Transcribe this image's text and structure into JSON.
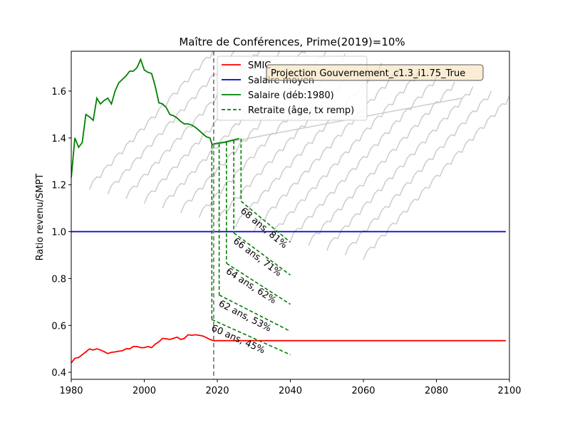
{
  "chart_data": {
    "type": "line",
    "title": "Maître de Conférences, Prime(2019)=10%",
    "xlabel": "",
    "ylabel": "Ratio revenu/SMPT",
    "xlim": [
      1980,
      2100
    ],
    "ylim": [
      0.37,
      1.77
    ],
    "xticks": [
      1980,
      2000,
      2020,
      2040,
      2060,
      2080,
      2100
    ],
    "yticks": [
      0.4,
      0.6,
      0.8,
      1.0,
      1.2,
      1.4,
      1.6
    ],
    "xtick_labels": [
      "1980",
      "2000",
      "2020",
      "2040",
      "2060",
      "2080",
      "2100"
    ],
    "ytick_labels": [
      "0.4",
      "0.6",
      "0.8",
      "1.0",
      "1.2",
      "1.4",
      "1.6"
    ],
    "vline_year": 2019,
    "annotation_box": "Projection Gouvernement_c1.3_i1.75_True",
    "legend_position": "top-center",
    "legend": [
      {
        "label": "SMIC",
        "color": "#ff0000",
        "style": "solid"
      },
      {
        "label": "Salaire moyen",
        "color": "#0000cc",
        "style": "solid"
      },
      {
        "label": "Salaire (déb:1980)",
        "color": "#008000",
        "style": "solid"
      },
      {
        "label": "Retraite (âge, tx remp)",
        "color": "#008000",
        "style": "dashed"
      }
    ],
    "series": [
      {
        "name": "SMIC",
        "color": "#ff0000",
        "points": [
          [
            1980,
            0.44
          ],
          [
            1981,
            0.46
          ],
          [
            1982,
            0.463
          ],
          [
            1983,
            0.475
          ],
          [
            1984,
            0.487
          ],
          [
            1985,
            0.5
          ],
          [
            1986,
            0.495
          ],
          [
            1987,
            0.5
          ],
          [
            1988,
            0.495
          ],
          [
            1989,
            0.488
          ],
          [
            1990,
            0.48
          ],
          [
            1991,
            0.485
          ],
          [
            1992,
            0.487
          ],
          [
            1993,
            0.49
          ],
          [
            1994,
            0.492
          ],
          [
            1995,
            0.5
          ],
          [
            1996,
            0.5
          ],
          [
            1997,
            0.51
          ],
          [
            1998,
            0.51
          ],
          [
            1999,
            0.505
          ],
          [
            2000,
            0.505
          ],
          [
            2001,
            0.51
          ],
          [
            2002,
            0.505
          ],
          [
            2003,
            0.52
          ],
          [
            2004,
            0.53
          ],
          [
            2005,
            0.545
          ],
          [
            2006,
            0.543
          ],
          [
            2007,
            0.54
          ],
          [
            2008,
            0.545
          ],
          [
            2009,
            0.55
          ],
          [
            2010,
            0.54
          ],
          [
            2011,
            0.545
          ],
          [
            2012,
            0.56
          ],
          [
            2013,
            0.558
          ],
          [
            2014,
            0.56
          ],
          [
            2015,
            0.558
          ],
          [
            2016,
            0.555
          ],
          [
            2017,
            0.548
          ],
          [
            2018,
            0.54
          ],
          [
            2019,
            0.535
          ],
          [
            2030,
            0.535
          ],
          [
            2060,
            0.535
          ],
          [
            2099,
            0.535
          ]
        ]
      },
      {
        "name": "Salaire moyen",
        "color": "#0000cc",
        "points": [
          [
            1980,
            1.0
          ],
          [
            2099,
            1.0
          ]
        ]
      },
      {
        "name": "Salaire (déb:1980)",
        "color": "#008000",
        "points": [
          [
            1980,
            1.23
          ],
          [
            1981,
            1.4
          ],
          [
            1982,
            1.36
          ],
          [
            1983,
            1.38
          ],
          [
            1984,
            1.5
          ],
          [
            1985,
            1.49
          ],
          [
            1986,
            1.475
          ],
          [
            1987,
            1.57
          ],
          [
            1988,
            1.545
          ],
          [
            1989,
            1.56
          ],
          [
            1990,
            1.57
          ],
          [
            1991,
            1.545
          ],
          [
            1992,
            1.6
          ],
          [
            1993,
            1.635
          ],
          [
            1994,
            1.65
          ],
          [
            1995,
            1.665
          ],
          [
            1996,
            1.685
          ],
          [
            1997,
            1.685
          ],
          [
            1998,
            1.7
          ],
          [
            1999,
            1.735
          ],
          [
            2000,
            1.69
          ],
          [
            2001,
            1.68
          ],
          [
            2002,
            1.675
          ],
          [
            2003,
            1.62
          ],
          [
            2004,
            1.55
          ],
          [
            2005,
            1.545
          ],
          [
            2006,
            1.53
          ],
          [
            2007,
            1.5
          ],
          [
            2008,
            1.495
          ],
          [
            2009,
            1.485
          ],
          [
            2010,
            1.47
          ],
          [
            2011,
            1.46
          ],
          [
            2012,
            1.46
          ],
          [
            2013,
            1.455
          ],
          [
            2014,
            1.445
          ],
          [
            2015,
            1.432
          ],
          [
            2016,
            1.418
          ],
          [
            2017,
            1.405
          ],
          [
            2018,
            1.4
          ],
          [
            2018.6,
            1.37
          ],
          [
            2019,
            1.375
          ],
          [
            2022,
            1.382
          ],
          [
            2024,
            1.39
          ],
          [
            2026,
            1.397
          ]
        ]
      }
    ],
    "cohort_curves_color": "#cccccc",
    "projection_line": [
      [
        2019,
        1.37
      ],
      [
        2087,
        1.57
      ]
    ],
    "pensions": [
      {
        "label": "60 ans, 45%",
        "start_year": 2018.5,
        "top": 1.37,
        "bottom": 0.625,
        "end_year": 2040,
        "end_value": 0.475,
        "label_x": 2018.2,
        "label_y": 0.58
      },
      {
        "label": "62 ans, 53%",
        "start_year": 2020.5,
        "top": 1.375,
        "bottom": 0.73,
        "end_year": 2040,
        "end_value": 0.575,
        "label_x": 2020.2,
        "label_y": 0.685
      },
      {
        "label": "64 ans, 62%",
        "start_year": 2022.5,
        "top": 1.382,
        "bottom": 0.865,
        "end_year": 2040,
        "end_value": 0.69,
        "label_x": 2022.2,
        "label_y": 0.825
      },
      {
        "label": "66 ans, 71%",
        "start_year": 2024.5,
        "top": 1.39,
        "bottom": 0.995,
        "end_year": 2040,
        "end_value": 0.815,
        "label_x": 2024.2,
        "label_y": 0.955
      },
      {
        "label": "68 ans, 81%",
        "start_year": 2026.5,
        "top": 1.397,
        "bottom": 1.13,
        "end_year": 2040,
        "end_value": 0.955,
        "label_x": 2026.2,
        "label_y": 1.085
      }
    ]
  }
}
